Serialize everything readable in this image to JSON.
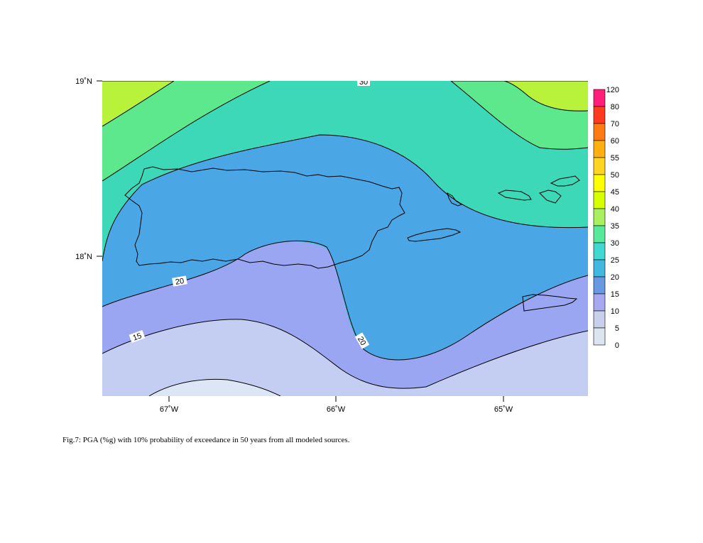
{
  "caption": "Fig.7:  PGA (%g) with 10% probability of exceedance in 50 years from all modeled sources.",
  "axes": {
    "lat_ticks": [
      "19˚N",
      "18˚N"
    ],
    "lon_ticks": [
      "67˚W",
      "66˚W",
      "65˚W"
    ]
  },
  "legend": {
    "labels": [
      "120",
      "80",
      "70",
      "60",
      "55",
      "50",
      "45",
      "40",
      "35",
      "30",
      "25",
      "20",
      "15",
      "10",
      "5",
      "0"
    ],
    "colors": [
      "#ff1f7a",
      "#ff3a1f",
      "#ff7a10",
      "#ffb010",
      "#ffd520",
      "#ffff00",
      "#d8ff00",
      "#a8f060",
      "#58e89a",
      "#40d8d0",
      "#40b8e0",
      "#6898e0",
      "#a8a8f0",
      "#c8d0ec",
      "#dce4f0",
      "#ffffff"
    ]
  },
  "contour_labels": [
    {
      "text": "30"
    },
    {
      "text": "20"
    },
    {
      "text": "15"
    },
    {
      "text": "20"
    }
  ],
  "colors": {
    "band_40_45": "#b8f23a",
    "band_35_40": "#5ee88e",
    "band_30_35": "#3cd8b8",
    "band_25_30": "#3cc6dc",
    "band_20_25": "#4aa6e4",
    "band_15_20": "#9aa6f2",
    "band_10_15": "#c4cef2",
    "band_5_10": "#dde6f4"
  },
  "islands": [
    "puerto-rico",
    "vieques",
    "st-thomas",
    "st-john",
    "tortola",
    "st-croix",
    "culebra"
  ]
}
